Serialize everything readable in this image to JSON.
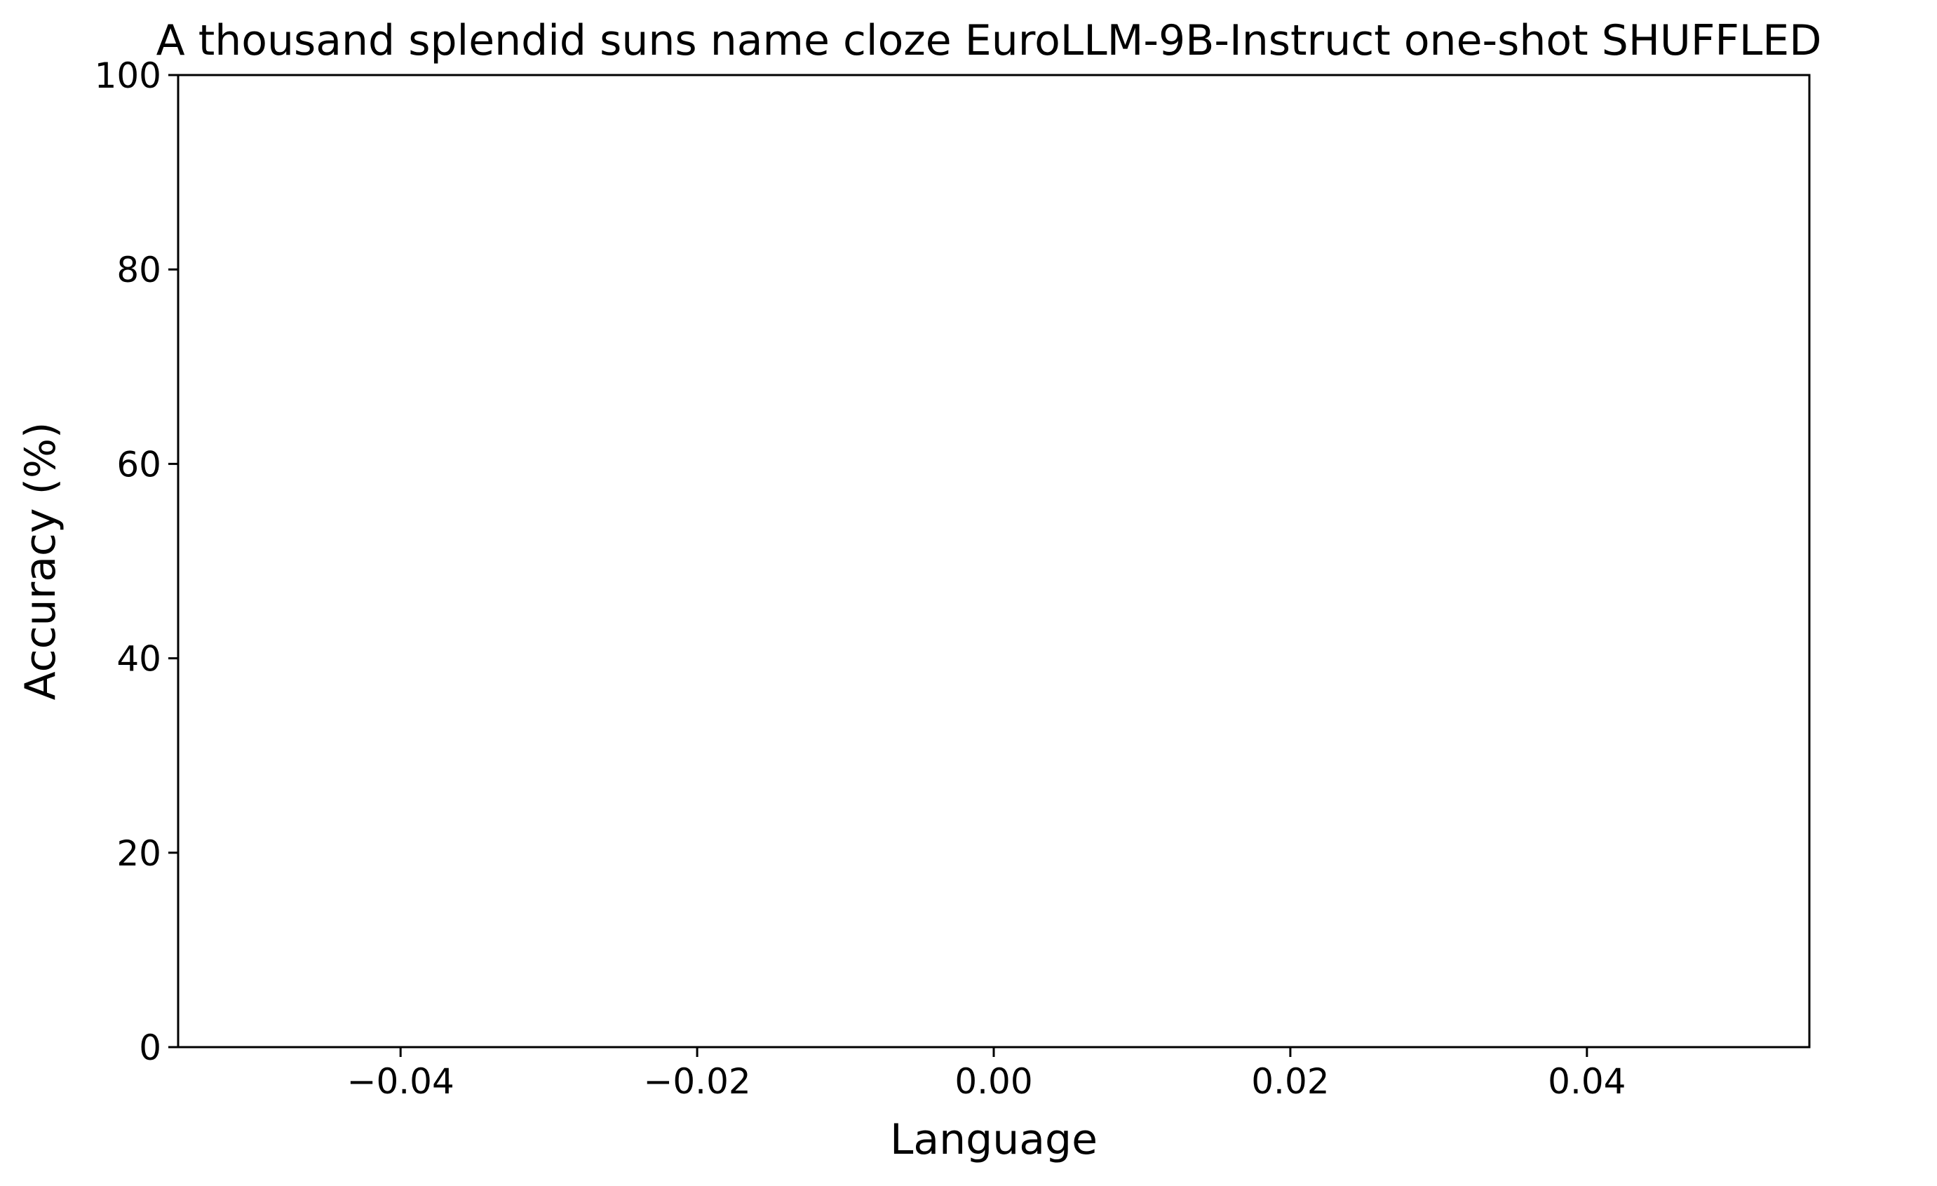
{
  "chart_data": {
    "type": "line",
    "title": "A thousand splendid suns name cloze EuroLLM-9B-Instruct one-shot SHUFFLED",
    "xlabel": "Language",
    "ylabel": "Accuracy (%)",
    "xlim": [
      -0.055,
      0.055
    ],
    "ylim": [
      0,
      100
    ],
    "xticks": [
      -0.04,
      -0.02,
      0.0,
      0.02,
      0.04
    ],
    "xtick_labels": [
      "−0.04",
      "−0.02",
      "0.00",
      "0.02",
      "0.04"
    ],
    "yticks": [
      0,
      20,
      40,
      60,
      80,
      100
    ],
    "ytick_labels": [
      "0",
      "20",
      "40",
      "60",
      "80",
      "100"
    ],
    "grid": false,
    "series": []
  }
}
